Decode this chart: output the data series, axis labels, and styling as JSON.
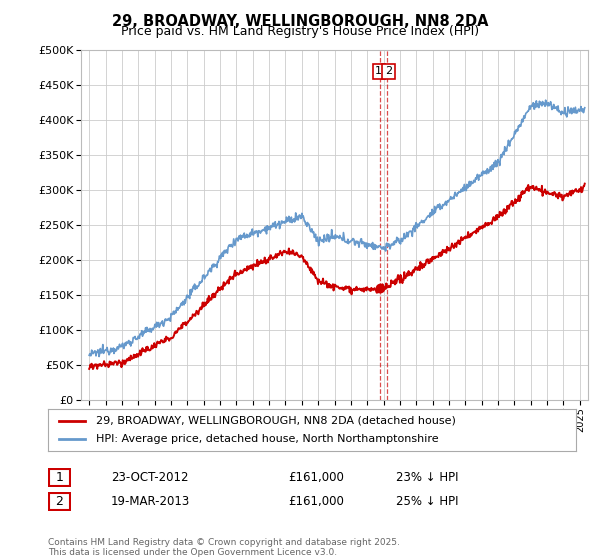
{
  "title": "29, BROADWAY, WELLINGBOROUGH, NN8 2DA",
  "subtitle": "Price paid vs. HM Land Registry's House Price Index (HPI)",
  "red_label": "29, BROADWAY, WELLINGBOROUGH, NN8 2DA (detached house)",
  "blue_label": "HPI: Average price, detached house, North Northamptonshire",
  "transaction1_date": "23-OCT-2012",
  "transaction1_price": "£161,000",
  "transaction1_hpi": "23% ↓ HPI",
  "transaction2_date": "19-MAR-2013",
  "transaction2_price": "£161,000",
  "transaction2_hpi": "25% ↓ HPI",
  "vline1_x": 2012.81,
  "vline2_x": 2013.22,
  "footer": "Contains HM Land Registry data © Crown copyright and database right 2025.\nThis data is licensed under the Open Government Licence v3.0.",
  "ylim": [
    0,
    500000
  ],
  "xlim_start": 1994.5,
  "xlim_end": 2025.5,
  "red_color": "#cc0000",
  "blue_color": "#6699cc",
  "vline_color": "#cc0000",
  "background_color": "#ffffff",
  "grid_color": "#cccccc"
}
